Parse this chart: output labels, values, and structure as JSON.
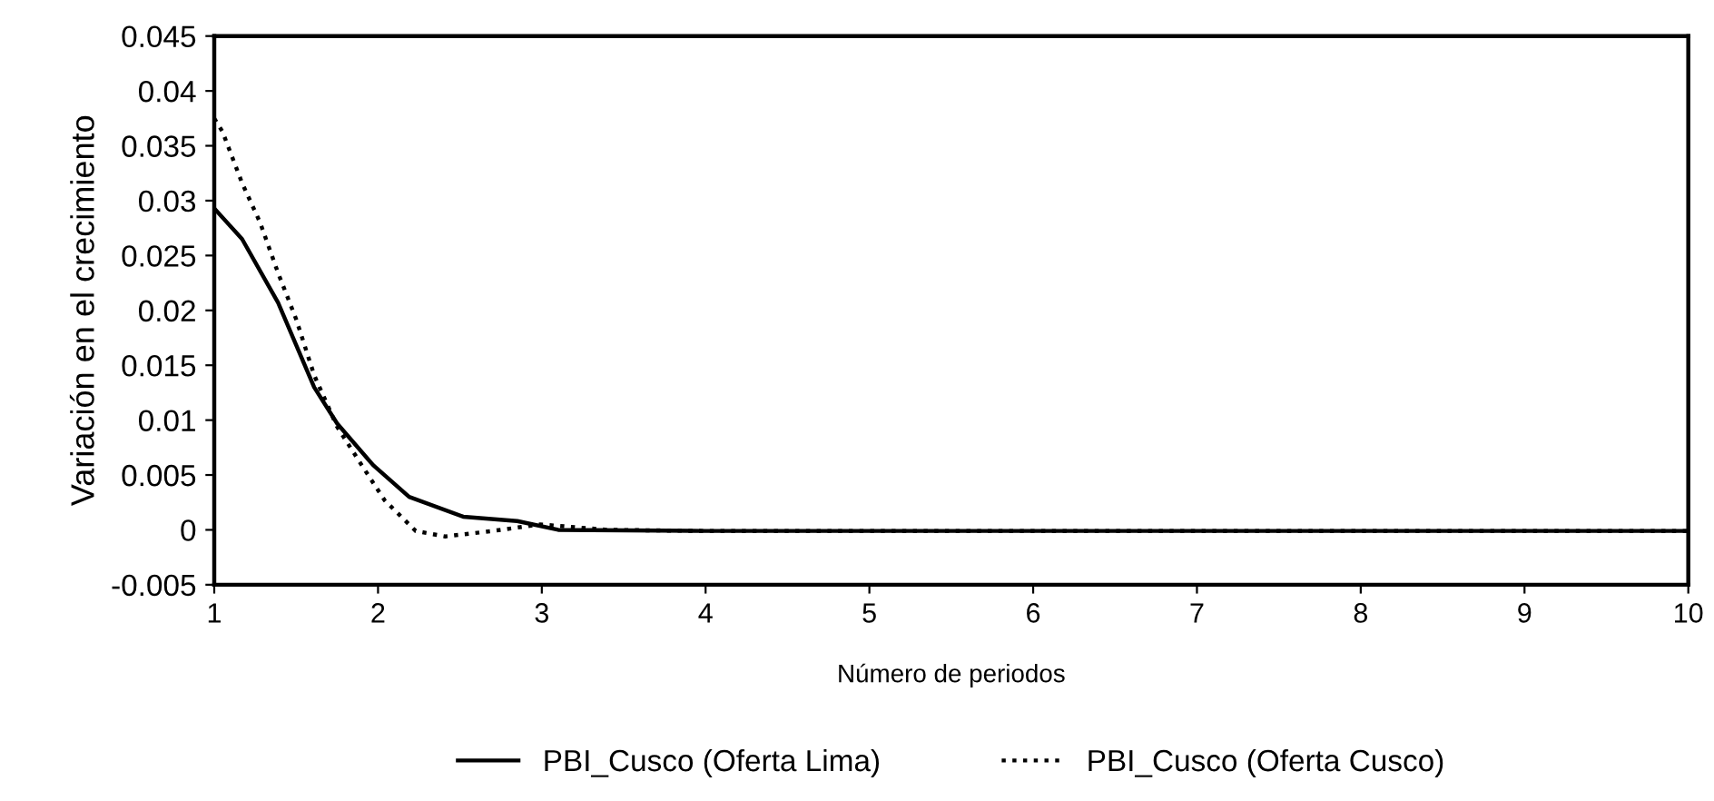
{
  "chart_data": {
    "type": "line",
    "xlabel": "Número de periodos",
    "ylabel": "Variación en el crecimiento",
    "xlim": [
      1,
      10
    ],
    "ylim": [
      -0.005,
      0.045
    ],
    "xticks": [
      1,
      2,
      3,
      4,
      5,
      6,
      7,
      8,
      9,
      10
    ],
    "yticks": [
      {
        "value": -0.005,
        "label": "-0.005"
      },
      0,
      0.005,
      0.01,
      0.015,
      0.02,
      0.025,
      0.03,
      0.035,
      0.04,
      0.045
    ],
    "grid": false,
    "legend": "bottom",
    "marker": "none",
    "series": [
      {
        "name": "PBI_Cusco (Oferta Lima)",
        "color": "#000000",
        "line_style": "solid",
        "x": [
          1,
          1.17,
          1.39,
          1.61,
          1.75,
          1.97,
          2.19,
          2.52,
          2.85,
          3.1,
          4,
          5,
          6,
          7,
          8,
          9,
          10
        ],
        "values": [
          0.0293,
          0.0265,
          0.0207,
          0.013,
          0.0097,
          0.0059,
          0.003,
          0.0012,
          0.0008,
          0.0,
          -0.0001,
          -0.0001,
          -0.0001,
          -0.0001,
          -0.0001,
          -0.0001,
          -0.0001
        ]
      },
      {
        "name": "PBI_Cusco (Oferta Cusco)",
        "color": "#000000",
        "line_style": "dotted",
        "x": [
          1,
          1.05,
          1.17,
          1.28,
          1.39,
          1.5,
          1.61,
          1.75,
          1.9,
          2.04,
          2.23,
          2.41,
          2.7,
          2.99,
          3.4,
          4,
          5,
          6,
          7,
          8,
          9,
          10
        ],
        "values": [
          0.0375,
          0.0363,
          0.0316,
          0.028,
          0.0234,
          0.0192,
          0.0141,
          0.0094,
          0.0059,
          0.0027,
          -0.0001,
          -0.0006,
          -0.0001,
          0.0005,
          0.0,
          -0.0001,
          -0.0001,
          -0.0001,
          -0.0001,
          -0.0001,
          -0.0001,
          -0.0001
        ]
      }
    ]
  }
}
